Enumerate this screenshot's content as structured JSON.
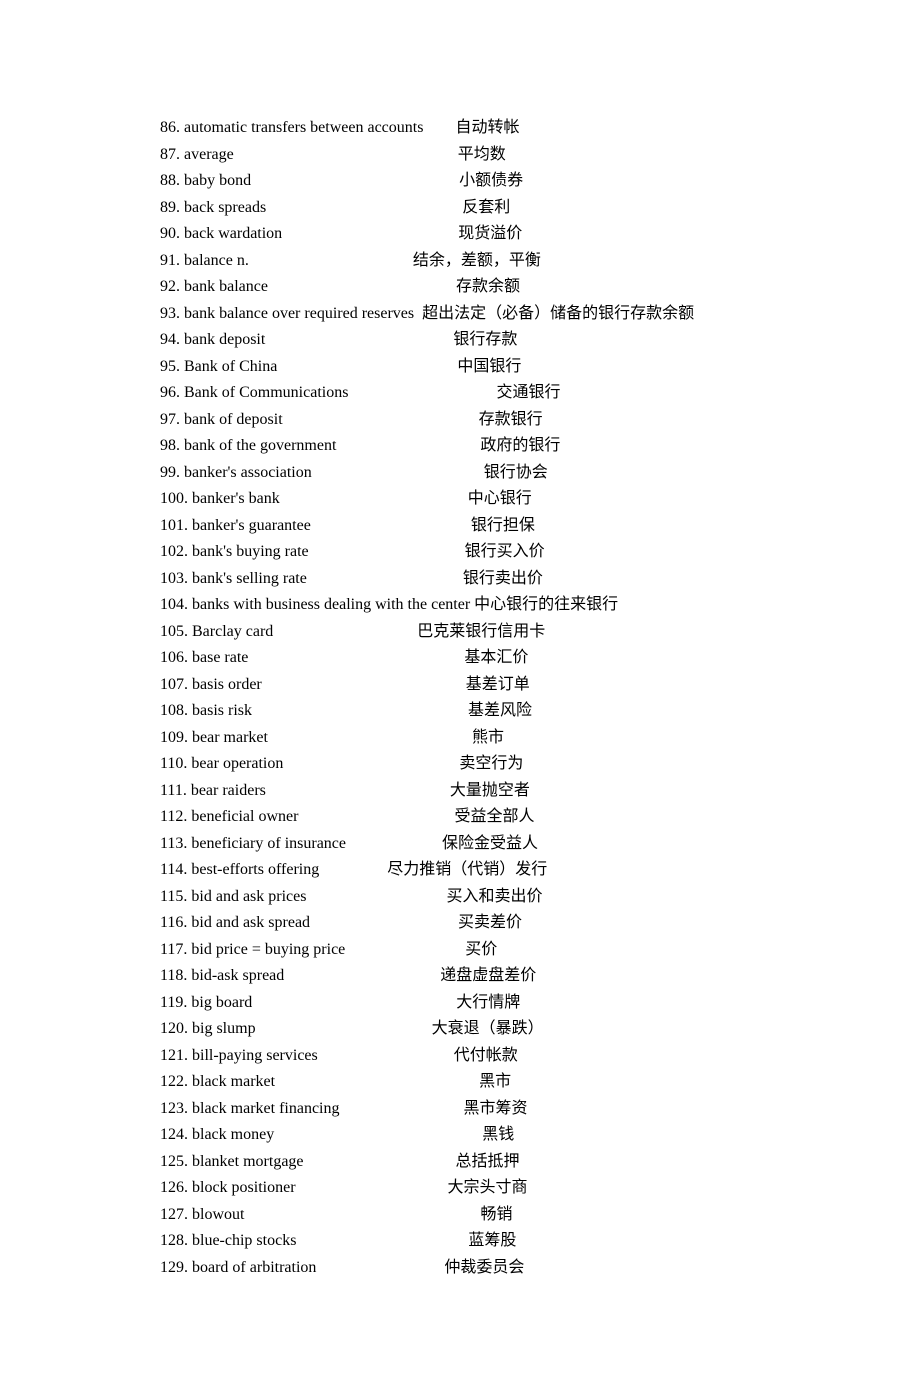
{
  "entries": [
    {
      "num": "86. ",
      "en": "automatic transfers between accounts",
      "zh": "自动转帐",
      "pad": "        "
    },
    {
      "num": "87. ",
      "en": "average",
      "zh": "平均数",
      "pad": "                                                        "
    },
    {
      "num": "88. ",
      "en": "baby bond",
      "zh": "小额债券",
      "pad": "                                                    "
    },
    {
      "num": "89. ",
      "en": "back spreads",
      "zh": "反套利",
      "pad": "                                                 "
    },
    {
      "num": "90. ",
      "en": "back wardation",
      "zh": "现货溢价",
      "pad": "                                            "
    },
    {
      "num": "91. ",
      "en": "balance n.",
      "zh": "结余，差额，平衡",
      "pad": "                                         "
    },
    {
      "num": "92. ",
      "en": "bank balance",
      "zh": "存款余额",
      "pad": "                                               "
    },
    {
      "num": "93. ",
      "en": "bank balance over required reserves",
      "zh": "超出法定（必备）储备的银行存款余额",
      "pad": "  "
    },
    {
      "num": "94. ",
      "en": "bank deposit",
      "zh": "银行存款",
      "pad": "                                               "
    },
    {
      "num": "95. ",
      "en": "Bank of China",
      "zh": "中国银行",
      "pad": "                                             "
    },
    {
      "num": "96. ",
      "en": "Bank of Communications",
      "zh": "交通银行",
      "pad": "                                     "
    },
    {
      "num": "97. ",
      "en": "bank of deposit",
      "zh": "存款银行",
      "pad": "                                                 "
    },
    {
      "num": "98. ",
      "en": "bank of the government",
      "zh": "政府的银行",
      "pad": "                                    "
    },
    {
      "num": "99. ",
      "en": "banker's association",
      "zh": "银行协会",
      "pad": "                                           "
    },
    {
      "num": "100.",
      "en": " banker's bank",
      "zh": "中心银行",
      "pad": "                                               "
    },
    {
      "num": "101.",
      "en": " banker's guarantee",
      "zh": "银行担保",
      "pad": "                                        "
    },
    {
      "num": "102.",
      "en": " bank's buying rate",
      "zh": "银行买入价",
      "pad": "                                       "
    },
    {
      "num": "103.",
      "en": " bank's selling rate",
      "zh": "银行卖出价",
      "pad": "                                       "
    },
    {
      "num": "104.",
      "en": " banks with business dealing with the center",
      "zh": "中心银行的往来银行",
      "pad": " "
    },
    {
      "num": "105.",
      "en": " Barclay card",
      "zh": "巴克莱银行信用卡",
      "pad": "                                    "
    },
    {
      "num": "106.",
      "en": " base rate",
      "zh": "基本汇价",
      "pad": "                                                      "
    },
    {
      "num": "107.",
      "en": " basis order",
      "zh": "基差订单",
      "pad": "                                                   "
    },
    {
      "num": "108.",
      "en": " basis risk",
      "zh": "基差风险",
      "pad": "                                                      "
    },
    {
      "num": "109.",
      "en": " bear market",
      "zh": "熊市",
      "pad": "                                                   "
    },
    {
      "num": "110.",
      "en": " bear operation",
      "zh": "卖空行为",
      "pad": "                                            "
    },
    {
      "num": "111.",
      "en": " bear raiders",
      "zh": "大量抛空者",
      "pad": "                                              "
    },
    {
      "num": "112.",
      "en": " beneficial owner",
      "zh": "受益全部人",
      "pad": "                                       "
    },
    {
      "num": "113.",
      "en": " beneficiary of insurance",
      "zh": "保险金受益人",
      "pad": "                        "
    },
    {
      "num": "114.",
      "en": " best-efforts offering",
      "zh": "尽力推销（代销）发行",
      "pad": "                 "
    },
    {
      "num": "115.",
      "en": " bid and ask prices",
      "zh": "买入和卖出价",
      "pad": "                                   "
    },
    {
      "num": "116.",
      "en": " bid and ask spread",
      "zh": "买卖差价",
      "pad": "                                     "
    },
    {
      "num": "117.",
      "en": " bid price = buying price",
      "zh": "买价",
      "pad": "                              "
    },
    {
      "num": "118.",
      "en": " bid-ask spread",
      "zh": "递盘虚盘差价",
      "pad": "                                       "
    },
    {
      "num": "119.",
      "en": " big board",
      "zh": "大行情牌",
      "pad": "                                                   "
    },
    {
      "num": "120.",
      "en": " big slump",
      "zh": "大衰退（暴跌）",
      "pad": "                                            "
    },
    {
      "num": "121.",
      "en": " bill-paying services",
      "zh": "代付帐款",
      "pad": "                                  "
    },
    {
      "num": "122.",
      "en": " black market",
      "zh": "黑市",
      "pad": "                                                   "
    },
    {
      "num": "123.",
      "en": " black market financing",
      "zh": "黑市筹资",
      "pad": "                               "
    },
    {
      "num": "124.",
      "en": " black money",
      "zh": "黑钱",
      "pad": "                                                    "
    },
    {
      "num": "125.",
      "en": " blanket mortgage",
      "zh": "总括抵押",
      "pad": "                                      "
    },
    {
      "num": "126.",
      "en": " block positioner",
      "zh": "大宗头寸商",
      "pad": "                                      "
    },
    {
      "num": "127.",
      "en": " blowout",
      "zh": "畅销",
      "pad": "                                                           "
    },
    {
      "num": "128.",
      "en": " blue-chip stocks",
      "zh": "蓝筹股",
      "pad": "                                           "
    },
    {
      "num": "129.",
      "en": " board of arbitration",
      "zh": "仲裁委员会",
      "pad": "                                "
    }
  ]
}
